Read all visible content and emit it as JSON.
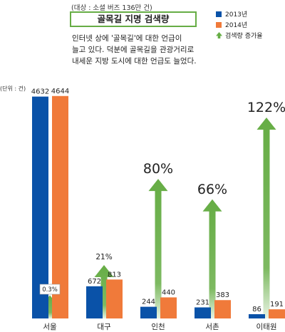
{
  "header": {
    "subtitle": "(대상 : 소셜 버즈 136만 건)",
    "title": "골목길 지명 검색량",
    "description": [
      "인터넷 상에 '골목길'에 대한 언급이",
      "늘고 있다. 덕분에 골목길을 관광거리로",
      "내세운 지방 도시에 대한 언급도 늘었다."
    ]
  },
  "legend": {
    "items": [
      {
        "label": "2013년",
        "color": "#0a52a8"
      },
      {
        "label": "2014년",
        "color": "#f07a3a"
      },
      {
        "label": "검색량 증가율",
        "color": "#66ad45",
        "icon": "up-arrow-icon"
      }
    ]
  },
  "unit_label": "(단위 : 건)",
  "chart_data": {
    "type": "bar",
    "title": "골목길 지명 검색량",
    "categories": [
      "서울",
      "대구",
      "인천",
      "서촌",
      "이태원"
    ],
    "series": [
      {
        "name": "2013년",
        "color": "#0a52a8",
        "values": [
          4632,
          672,
          244,
          231,
          86
        ]
      },
      {
        "name": "2014년",
        "color": "#f07a3a",
        "values": [
          4644,
          813,
          440,
          383,
          191
        ]
      }
    ],
    "growth": {
      "name": "검색량 증가율",
      "color": "#66ad45",
      "labels": [
        "0.3%",
        "21%",
        "80%",
        "66%",
        "122%"
      ],
      "values": [
        0.3,
        21,
        80,
        66,
        122
      ]
    },
    "ylabel": "(단위 : 건)",
    "ylim": [
      0,
      4700
    ],
    "grid": false,
    "legend_position": "top-right"
  }
}
